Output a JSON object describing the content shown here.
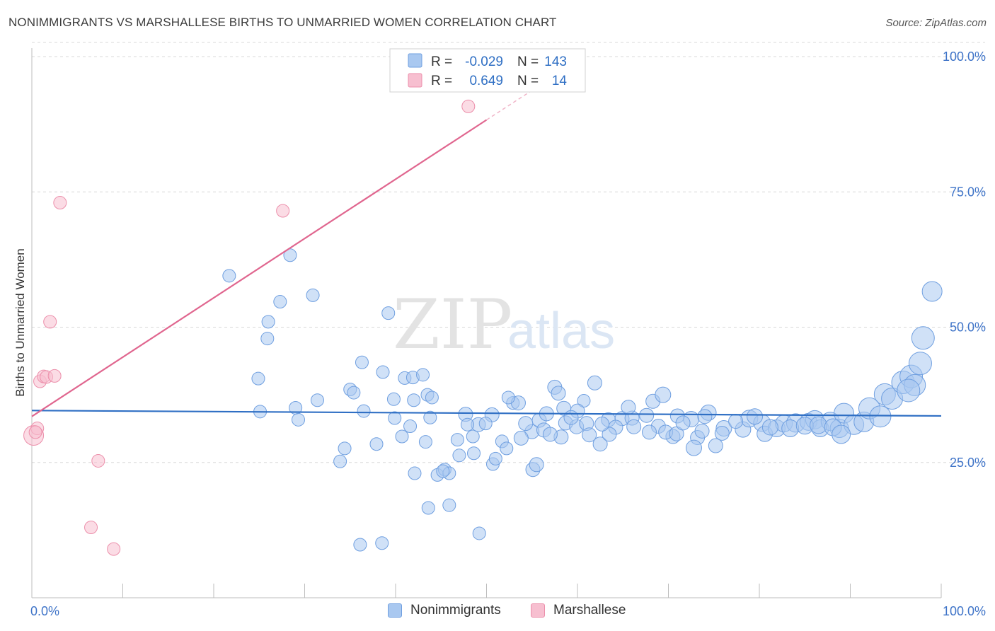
{
  "title": "NONIMMIGRANTS VS MARSHALLESE BIRTHS TO UNMARRIED WOMEN CORRELATION CHART",
  "source": "Source: ZipAtlas.com",
  "watermark": {
    "zip": "ZIP",
    "atlas": "atlas"
  },
  "colors": {
    "blue_fill": "#a9c8f0",
    "blue_stroke": "#6f9fe0",
    "blue_line": "#2f6fc4",
    "pink_fill": "#f7bfd0",
    "pink_stroke": "#ec8fab",
    "pink_line": "#e0668f",
    "tick_label": "#3f74c8",
    "grid": "#d8d8d8"
  },
  "legend": {
    "rows": [
      {
        "r_label": "R =",
        "r_value": "-0.029",
        "n_label": "N =",
        "n_value": "143"
      },
      {
        "r_label": "R =",
        "r_value": "0.649",
        "n_label": "N =",
        "n_value": "14"
      }
    ]
  },
  "bottom_legend": [
    "Nonimmigrants",
    "Marshallese"
  ],
  "chart_data": {
    "type": "scatter",
    "title": "NONIMMIGRANTS VS MARSHALLESE BIRTHS TO UNMARRIED WOMEN CORRELATION CHART",
    "xlabel": "",
    "ylabel": "Births to Unmarried Women",
    "xlim": [
      0,
      100
    ],
    "ylim": [
      0,
      102
    ],
    "x_tick_labels": [
      "0.0%",
      "100.0%"
    ],
    "y_ticks": [
      25,
      50,
      75,
      100
    ],
    "y_tick_labels": [
      "25.0%",
      "50.0%",
      "75.0%",
      "100.0%"
    ],
    "grid": true,
    "legend_position": "top-center",
    "series": [
      {
        "name": "Nonimmigrants",
        "trend": {
          "x": [
            0,
            100
          ],
          "y": [
            34.6,
            33.6
          ]
        },
        "points": [
          [
            21.7,
            59.5,
            9
          ],
          [
            28.4,
            63.3,
            9
          ],
          [
            27.3,
            54.7,
            9
          ],
          [
            26.0,
            51.0,
            9
          ],
          [
            25.9,
            47.9,
            9
          ],
          [
            30.9,
            55.9,
            9
          ],
          [
            39.2,
            52.6,
            9
          ],
          [
            24.9,
            40.5,
            9
          ],
          [
            25.1,
            34.4,
            9
          ],
          [
            29.0,
            35.1,
            9
          ],
          [
            29.3,
            32.9,
            9
          ],
          [
            31.4,
            36.5,
            9
          ],
          [
            33.9,
            25.2,
            9
          ],
          [
            34.4,
            27.6,
            9
          ],
          [
            35.0,
            38.5,
            9
          ],
          [
            35.4,
            37.9,
            9
          ],
          [
            36.3,
            43.5,
            9
          ],
          [
            36.5,
            34.5,
            9
          ],
          [
            37.9,
            28.4,
            9
          ],
          [
            38.6,
            41.7,
            9
          ],
          [
            39.8,
            36.7,
            9
          ],
          [
            39.9,
            33.2,
            9
          ],
          [
            40.7,
            29.8,
            9
          ],
          [
            41.0,
            40.6,
            9
          ],
          [
            41.6,
            31.7,
            9
          ],
          [
            41.9,
            40.7,
            9
          ],
          [
            42.1,
            23.0,
            9
          ],
          [
            43.0,
            41.2,
            9
          ],
          [
            43.3,
            28.8,
            9
          ],
          [
            43.5,
            37.5,
            9
          ],
          [
            43.8,
            33.3,
            9
          ],
          [
            44.6,
            22.7,
            9
          ],
          [
            45.4,
            23.7,
            9
          ],
          [
            45.9,
            23.0,
            9
          ],
          [
            47.7,
            33.9,
            10
          ],
          [
            48.5,
            29.8,
            9
          ],
          [
            49.1,
            32.0,
            10
          ],
          [
            50.6,
            33.8,
            10
          ],
          [
            50.7,
            24.7,
            9
          ],
          [
            51.0,
            25.7,
            9
          ],
          [
            51.7,
            28.9,
            9
          ],
          [
            52.2,
            27.6,
            9
          ],
          [
            52.9,
            36.0,
            9
          ],
          [
            53.5,
            36.0,
            10
          ],
          [
            55.1,
            23.7,
            10
          ],
          [
            55.0,
            30.7,
            10
          ],
          [
            55.8,
            32.8,
            10
          ],
          [
            56.3,
            31.0,
            10
          ],
          [
            57.5,
            38.9,
            10
          ],
          [
            57.9,
            37.8,
            10
          ],
          [
            58.5,
            35.0,
            10
          ],
          [
            58.7,
            32.3,
            10
          ],
          [
            59.9,
            31.6,
            10
          ],
          [
            61.0,
            32.2,
            10
          ],
          [
            61.9,
            39.7,
            10
          ],
          [
            63.4,
            32.9,
            10
          ],
          [
            64.9,
            33.1,
            10
          ],
          [
            66.0,
            33.2,
            10
          ],
          [
            67.6,
            33.7,
            10
          ],
          [
            68.3,
            36.3,
            10
          ],
          [
            68.9,
            31.7,
            10
          ],
          [
            69.4,
            37.5,
            11
          ],
          [
            70.5,
            29.8,
            10
          ],
          [
            71.0,
            33.6,
            10
          ],
          [
            72.5,
            33.0,
            11
          ],
          [
            73.2,
            29.6,
            10
          ],
          [
            74.4,
            34.2,
            11
          ],
          [
            75.2,
            28.1,
            10
          ],
          [
            76.1,
            31.3,
            11
          ],
          [
            78.2,
            31.1,
            11
          ],
          [
            78.9,
            33.1,
            12
          ],
          [
            80.3,
            32.3,
            12
          ],
          [
            80.6,
            30.3,
            11
          ],
          [
            81.9,
            31.3,
            12
          ],
          [
            82.7,
            32.2,
            12
          ],
          [
            84.0,
            32.3,
            13
          ],
          [
            85.4,
            32.5,
            12
          ],
          [
            86.1,
            32.9,
            13
          ],
          [
            86.7,
            31.3,
            12
          ],
          [
            87.8,
            32.6,
            13
          ],
          [
            88.8,
            31.3,
            13
          ],
          [
            89.3,
            34.1,
            14
          ],
          [
            90.4,
            32.0,
            14
          ],
          [
            91.5,
            32.5,
            14
          ],
          [
            92.1,
            35.0,
            15
          ],
          [
            93.3,
            33.5,
            15
          ],
          [
            93.8,
            37.6,
            15
          ],
          [
            94.6,
            36.8,
            15
          ],
          [
            95.8,
            39.8,
            16
          ],
          [
            96.7,
            40.9,
            16
          ],
          [
            97.7,
            43.3,
            16
          ],
          [
            97.1,
            39.3,
            15
          ],
          [
            96.4,
            38.3,
            16
          ],
          [
            98.0,
            48.0,
            16
          ],
          [
            99.0,
            56.6,
            14
          ],
          [
            72.8,
            27.7,
            11
          ],
          [
            74.0,
            33.5,
            10
          ],
          [
            65.6,
            35.2,
            10
          ],
          [
            60.7,
            36.4,
            9
          ],
          [
            61.3,
            30.1,
            10
          ],
          [
            62.5,
            28.4,
            10
          ],
          [
            66.2,
            31.6,
            10
          ],
          [
            69.7,
            30.6,
            10
          ],
          [
            70.9,
            30.3,
            10
          ],
          [
            67.9,
            30.6,
            10
          ],
          [
            64.2,
            31.5,
            10
          ],
          [
            63.5,
            30.2,
            10
          ],
          [
            62.7,
            32.1,
            10
          ],
          [
            60.0,
            34.5,
            10
          ],
          [
            59.3,
            33.3,
            10
          ],
          [
            58.2,
            29.7,
            10
          ],
          [
            57.0,
            30.2,
            10
          ],
          [
            56.6,
            34.0,
            10
          ],
          [
            54.3,
            32.2,
            10
          ],
          [
            52.4,
            37.0,
            9
          ],
          [
            49.9,
            32.2,
            9
          ],
          [
            47.9,
            32.0,
            9
          ],
          [
            46.8,
            29.2,
            9
          ],
          [
            45.2,
            23.4,
            9
          ],
          [
            43.6,
            16.6,
            9
          ],
          [
            45.9,
            17.1,
            9
          ],
          [
            49.2,
            11.9,
            9
          ],
          [
            36.1,
            9.8,
            9
          ],
          [
            38.5,
            10.1,
            9
          ],
          [
            42.0,
            36.5,
            9
          ],
          [
            44.0,
            37.0,
            9
          ],
          [
            47.0,
            26.3,
            9
          ],
          [
            48.6,
            26.7,
            9
          ],
          [
            53.8,
            29.5,
            10
          ],
          [
            55.5,
            24.6,
            10
          ],
          [
            71.6,
            32.3,
            10
          ],
          [
            73.7,
            30.8,
            10
          ],
          [
            75.9,
            30.4,
            10
          ],
          [
            77.4,
            32.6,
            10
          ],
          [
            79.5,
            33.5,
            11
          ],
          [
            81.2,
            31.5,
            11
          ],
          [
            83.4,
            31.3,
            12
          ],
          [
            85.0,
            31.8,
            12
          ],
          [
            86.5,
            31.9,
            12
          ],
          [
            88.1,
            31.5,
            12
          ],
          [
            89.0,
            30.2,
            13
          ]
        ]
      },
      {
        "name": "Marshallese",
        "trend": {
          "x": [
            0,
            50
          ],
          "y": [
            33.5,
            88.3
          ]
        },
        "trend_dashed_extension": {
          "x": [
            50,
            55.6
          ],
          "y": [
            88.3,
            94.4
          ]
        },
        "points": [
          [
            0.2,
            30.0,
            14
          ],
          [
            0.6,
            31.3,
            9
          ],
          [
            0.4,
            30.6,
            9
          ],
          [
            0.9,
            40.0,
            9
          ],
          [
            1.3,
            40.9,
            9
          ],
          [
            1.6,
            40.8,
            9
          ],
          [
            2.0,
            51.0,
            9
          ],
          [
            2.5,
            41.0,
            9
          ],
          [
            3.1,
            73.0,
            9
          ],
          [
            6.5,
            13.0,
            9
          ],
          [
            7.3,
            25.3,
            9
          ],
          [
            9.0,
            9.0,
            9
          ],
          [
            27.6,
            71.5,
            9
          ],
          [
            48.0,
            90.8,
            9
          ]
        ]
      }
    ]
  }
}
